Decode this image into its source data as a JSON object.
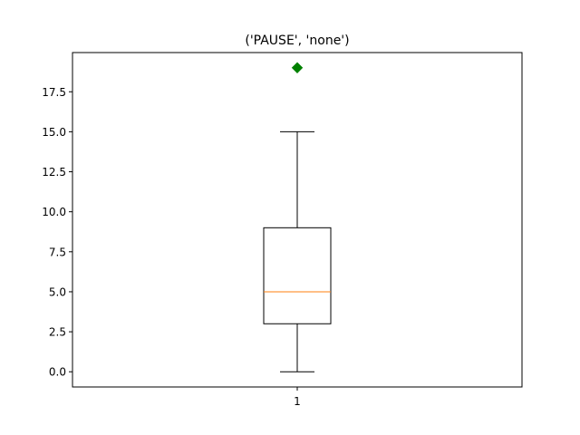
{
  "chart_data": {
    "type": "box",
    "title": "('PAUSE', 'none')",
    "xlabel": "",
    "ylabel": "",
    "ylim": [
      -0.95,
      19.95
    ],
    "grid": false,
    "x_ticks": [
      "1"
    ],
    "y_ticks": [
      0.0,
      2.5,
      5.0,
      7.5,
      10.0,
      12.5,
      15.0,
      17.5
    ],
    "y_tick_labels": [
      "0.0",
      "2.5",
      "5.0",
      "7.5",
      "10.0",
      "12.5",
      "15.0",
      "17.5"
    ],
    "boxes": [
      {
        "category": "1",
        "whisker_low": 0,
        "q1": 3,
        "median": 5,
        "q3": 9,
        "whisker_high": 15,
        "outliers": [
          19
        ]
      }
    ],
    "colors": {
      "box": "#000000",
      "median": "#ff7f0e",
      "outlier": "#008000"
    }
  }
}
